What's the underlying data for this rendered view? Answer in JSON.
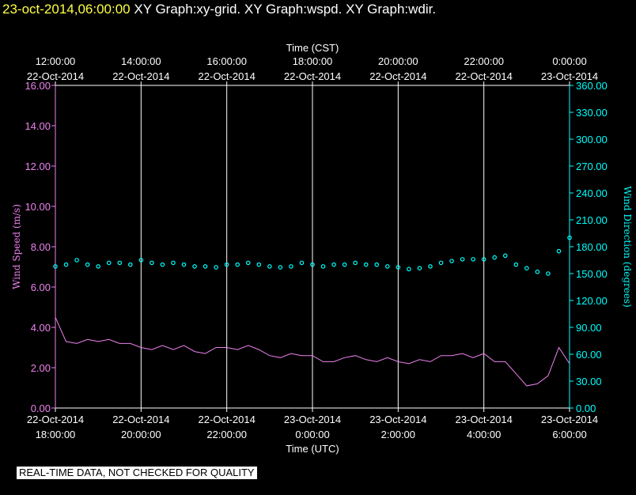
{
  "header": {
    "datetime": "23-oct-2014,06:00:00",
    "graphs": "XY Graph:xy-grid.  XY Graph:wspd.  XY Graph:wdir."
  },
  "notice": "REAL-TIME DATA, NOT CHECKED FOR QUALITY",
  "colors": {
    "background": "#000000",
    "axes": "#ffffff",
    "wind_speed": "#ee82ee",
    "wind_direction": "#00ffff",
    "datetime": "#ffff44"
  },
  "chart_data": {
    "type": "line",
    "top_axis": {
      "label": "Time (CST)",
      "ticks": [
        {
          "t": 0,
          "time": "12:00:00",
          "date": "22-Oct-2014"
        },
        {
          "t": 2,
          "time": "14:00:00",
          "date": "22-Oct-2014"
        },
        {
          "t": 4,
          "time": "16:00:00",
          "date": "22-Oct-2014"
        },
        {
          "t": 6,
          "time": "18:00:00",
          "date": "22-Oct-2014"
        },
        {
          "t": 8,
          "time": "20:00:00",
          "date": "22-Oct-2014"
        },
        {
          "t": 10,
          "time": "22:00:00",
          "date": "22-Oct-2014"
        },
        {
          "t": 12,
          "time": "0:00:00",
          "date": "23-Oct-2014"
        }
      ]
    },
    "bottom_axis": {
      "label": "Time (UTC)",
      "ticks": [
        {
          "t": 0,
          "date": "22-Oct-2014",
          "time": "18:00:00"
        },
        {
          "t": 2,
          "date": "22-Oct-2014",
          "time": "20:00:00"
        },
        {
          "t": 4,
          "date": "22-Oct-2014",
          "time": "22:00:00"
        },
        {
          "t": 6,
          "date": "23-Oct-2014",
          "time": "0:00:00"
        },
        {
          "t": 8,
          "date": "23-Oct-2014",
          "time": "2:00:00"
        },
        {
          "t": 10,
          "date": "23-Oct-2014",
          "time": "4:00:00"
        },
        {
          "t": 12,
          "date": "23-Oct-2014",
          "time": "6:00:00"
        }
      ],
      "range": [
        0,
        12
      ],
      "vertical_grid": true
    },
    "left_axis": {
      "label": "Wind Speed (m/s)",
      "range": [
        0,
        16
      ],
      "ticks": [
        "0.00",
        "2.00",
        "4.00",
        "6.00",
        "8.00",
        "10.00",
        "12.00",
        "14.00",
        "16.00"
      ]
    },
    "right_axis": {
      "label": "Wind Direction (degrees)",
      "range": [
        0,
        360
      ],
      "ticks": [
        "0.00",
        "30.00",
        "60.00",
        "90.00",
        "120.00",
        "150.00",
        "180.00",
        "210.00",
        "240.00",
        "270.00",
        "300.00",
        "330.00",
        "360.00"
      ]
    },
    "series": [
      {
        "name": "Wind Speed (m/s)",
        "axis": "left",
        "style": "line",
        "color": "#ee82ee",
        "x": [
          0,
          0.25,
          0.5,
          0.75,
          1,
          1.25,
          1.5,
          1.75,
          2,
          2.25,
          2.5,
          2.75,
          3,
          3.25,
          3.5,
          3.75,
          4,
          4.25,
          4.5,
          4.75,
          5,
          5.25,
          5.5,
          5.75,
          6,
          6.25,
          6.5,
          6.75,
          7,
          7.25,
          7.5,
          7.75,
          8,
          8.25,
          8.5,
          8.75,
          9,
          9.25,
          9.5,
          9.75,
          10,
          10.25,
          10.5,
          10.75,
          11,
          11.25,
          11.5,
          11.75,
          12
        ],
        "y": [
          4.5,
          3.3,
          3.2,
          3.4,
          3.3,
          3.4,
          3.2,
          3.2,
          3.0,
          2.9,
          3.1,
          2.9,
          3.1,
          2.8,
          2.7,
          3.0,
          3.0,
          2.9,
          3.1,
          2.9,
          2.6,
          2.5,
          2.7,
          2.6,
          2.6,
          2.3,
          2.3,
          2.5,
          2.6,
          2.4,
          2.3,
          2.5,
          2.3,
          2.2,
          2.4,
          2.3,
          2.6,
          2.6,
          2.7,
          2.5,
          2.7,
          2.3,
          2.3,
          1.7,
          1.1,
          1.2,
          1.6,
          3.0,
          2.2
        ]
      },
      {
        "name": "Wind Direction (degrees)",
        "axis": "right",
        "style": "markers",
        "color": "#00ffff",
        "x": [
          0,
          0.25,
          0.5,
          0.75,
          1,
          1.25,
          1.5,
          1.75,
          2,
          2.25,
          2.5,
          2.75,
          3,
          3.25,
          3.5,
          3.75,
          4,
          4.25,
          4.5,
          4.75,
          5,
          5.25,
          5.5,
          5.75,
          6,
          6.25,
          6.5,
          6.75,
          7,
          7.25,
          7.5,
          7.75,
          8,
          8.25,
          8.5,
          8.75,
          9,
          9.25,
          9.5,
          9.75,
          10,
          10.25,
          10.5,
          10.75,
          11,
          11.25,
          11.5,
          11.75,
          12
        ],
        "y": [
          158,
          160,
          165,
          160,
          158,
          162,
          162,
          160,
          165,
          162,
          160,
          162,
          160,
          158,
          158,
          157,
          160,
          160,
          162,
          160,
          158,
          157,
          158,
          162,
          160,
          158,
          160,
          160,
          162,
          160,
          160,
          158,
          157,
          155,
          156,
          158,
          162,
          164,
          166,
          166,
          166,
          168,
          170,
          160,
          156,
          152,
          150,
          175,
          190
        ]
      }
    ]
  }
}
